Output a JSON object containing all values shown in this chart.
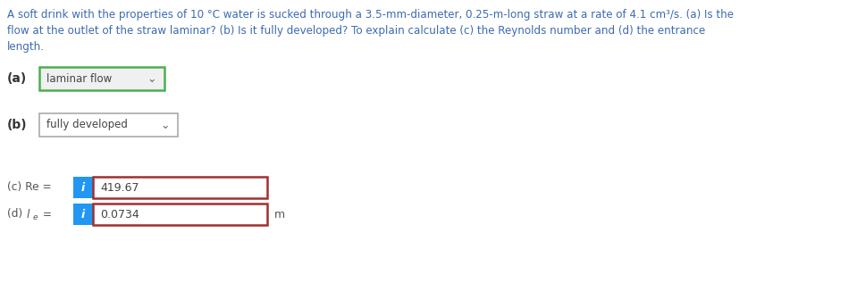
{
  "title_line1": "A soft drink with the properties of 10 °C water is sucked through a 3.5-mm-diameter, 0.25-m-long straw at a rate of 4.1 cm³/s. (a) Is the",
  "title_line2": "flow at the outlet of the straw laminar? (b) Is it fully developed? To explain calculate (c) the Reynolds number and (d) the entrance",
  "title_line3": "length.",
  "part_a_label": "(a)",
  "part_a_dropdown_text": "laminar flow",
  "part_b_label": "(b)",
  "part_b_dropdown_text": "fully developed",
  "part_c_label_plain": "(c) Re = ",
  "part_c_value": "419.67",
  "part_d_value": "0.0734",
  "part_d_unit": "m",
  "text_color": "#3c6bb0",
  "dropdown_a_border_color": "#4caf50",
  "dropdown_b_border_color": "#aaaaaa",
  "input_border_color": "#a03030",
  "info_button_color": "#2196f3",
  "bg_color": "#ffffff",
  "label_color": "#555555",
  "value_color": "#444444",
  "bold_label_color": "#333333"
}
